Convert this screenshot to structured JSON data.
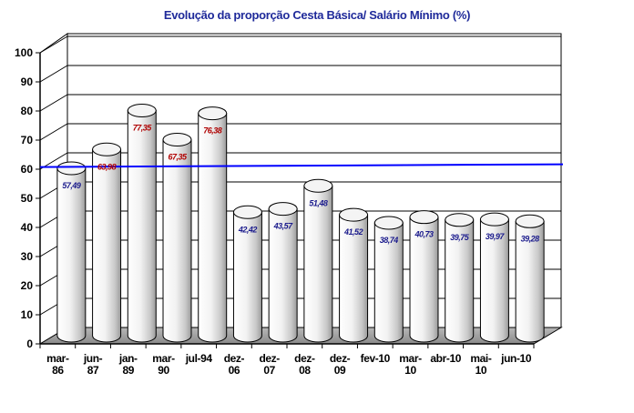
{
  "chart_data": {
    "type": "bar",
    "title": "Evolução da proporção Cesta Básica/ Salário Mínimo (%)",
    "categories": [
      "mar-86",
      "jun-87",
      "jan-89",
      "mar-90",
      "jul-94",
      "dez-06",
      "dez-07",
      "dez-08",
      "dez-09",
      "fev-10",
      "mar-10",
      "abr-10",
      "mai-10",
      "jun-10"
    ],
    "values": [
      57.49,
      63.98,
      77.35,
      67.35,
      76.38,
      42.42,
      43.57,
      51.48,
      41.52,
      38.74,
      40.73,
      39.75,
      39.97,
      39.28
    ],
    "value_labels": [
      "57,49",
      "63,98",
      "77,35",
      "67,35",
      "76,38",
      "42,42",
      "43,57",
      "51,48",
      "41,52",
      "38,74",
      "40,73",
      "39,75",
      "39,97",
      "39,28"
    ],
    "label_colors": [
      "#1a1a8c",
      "#b00000",
      "#b00000",
      "#b00000",
      "#b00000",
      "#1a1a8c",
      "#1a1a8c",
      "#1a1a8c",
      "#1a1a8c",
      "#1a1a8c",
      "#1a1a8c",
      "#1a1a8c",
      "#1a1a8c",
      "#1a1a8c"
    ],
    "ylim": [
      0,
      100
    ],
    "yticks": [
      "0",
      "10",
      "20",
      "30",
      "40",
      "50",
      "60",
      "70",
      "80",
      "90",
      "100"
    ],
    "grid": true,
    "bar_style": "3d-cylinder",
    "reference_line": {
      "value": 58,
      "color": "#0000ff"
    },
    "colors": {
      "title": "#1f2a9a",
      "wall": "#ffffff",
      "floor": "#9a9a9a",
      "bar": "#ffffff"
    }
  }
}
